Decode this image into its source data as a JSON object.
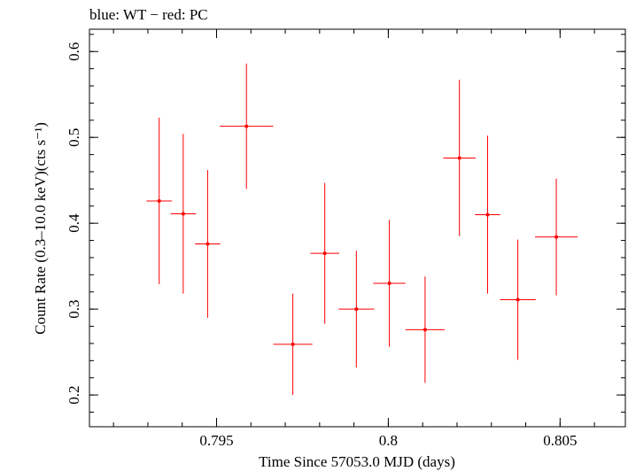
{
  "chart_data": {
    "type": "scatter",
    "title": "blue: WT − red: PC",
    "xlabel": "Time Since 57053.0 MJD (days)",
    "ylabel": "Count Rate (0.3–10.0 keV)(cts s⁻¹)",
    "xlim": [
      0.7913,
      0.8069
    ],
    "ylim": [
      0.163,
      0.626
    ],
    "xticks": [
      {
        "value": 0.795,
        "label": "0.795"
      },
      {
        "value": 0.8,
        "label": "0.8"
      },
      {
        "value": 0.805,
        "label": "0.805"
      }
    ],
    "yticks": [
      {
        "value": 0.2,
        "label": "0.2"
      },
      {
        "value": 0.3,
        "label": "0.3"
      },
      {
        "value": 0.4,
        "label": "0.4"
      },
      {
        "value": 0.5,
        "label": "0.5"
      },
      {
        "value": 0.6,
        "label": "0.6"
      }
    ],
    "x_minor_step": 0.001,
    "y_minor_step": 0.02,
    "grid": false,
    "series": [
      {
        "color": "#ff0000",
        "points": [
          {
            "x": 0.79333,
            "xerr": 0.00037,
            "y": 0.426,
            "yerr_lo": 0.097,
            "yerr_hi": 0.097
          },
          {
            "x": 0.79403,
            "xerr": 0.00037,
            "y": 0.411,
            "yerr_lo": 0.093,
            "yerr_hi": 0.093
          },
          {
            "x": 0.79474,
            "xerr": 0.00037,
            "y": 0.376,
            "yerr_lo": 0.086,
            "yerr_hi": 0.086
          },
          {
            "x": 0.79587,
            "xerr": 0.00078,
            "y": 0.513,
            "yerr_lo": 0.073,
            "yerr_hi": 0.073
          },
          {
            "x": 0.79722,
            "xerr": 0.00057,
            "y": 0.259,
            "yerr_lo": 0.059,
            "yerr_hi": 0.059
          },
          {
            "x": 0.79815,
            "xerr": 0.00042,
            "y": 0.365,
            "yerr_lo": 0.082,
            "yerr_hi": 0.082
          },
          {
            "x": 0.79907,
            "xerr": 0.00052,
            "y": 0.3,
            "yerr_lo": 0.068,
            "yerr_hi": 0.068
          },
          {
            "x": 0.80003,
            "xerr": 0.00047,
            "y": 0.33,
            "yerr_lo": 0.074,
            "yerr_hi": 0.074
          },
          {
            "x": 0.80107,
            "xerr": 0.00057,
            "y": 0.276,
            "yerr_lo": 0.062,
            "yerr_hi": 0.062
          },
          {
            "x": 0.80207,
            "xerr": 0.00047,
            "y": 0.476,
            "yerr_lo": 0.091,
            "yerr_hi": 0.091
          },
          {
            "x": 0.80289,
            "xerr": 0.00037,
            "y": 0.41,
            "yerr_lo": 0.092,
            "yerr_hi": 0.092
          },
          {
            "x": 0.80377,
            "xerr": 0.00052,
            "y": 0.311,
            "yerr_lo": 0.07,
            "yerr_hi": 0.07
          },
          {
            "x": 0.80489,
            "xerr": 0.00062,
            "y": 0.384,
            "yerr_lo": 0.068,
            "yerr_hi": 0.068
          }
        ]
      }
    ]
  }
}
